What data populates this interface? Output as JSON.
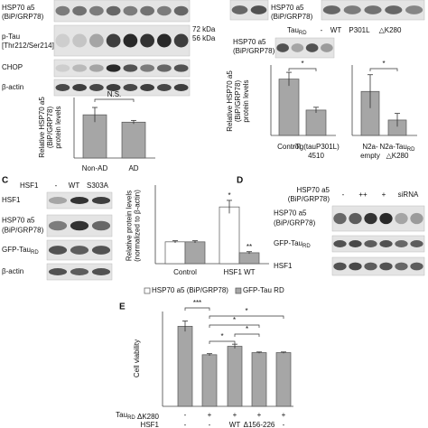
{
  "panel_labels": [
    "C",
    "D",
    "E"
  ],
  "blots": {
    "a": {
      "rows": [
        [
          "HSP70 a5",
          "(BiP/GRP78)"
        ],
        [
          "p-Tau",
          "[Thr212/Ser214]"
        ],
        [
          "CHOP"
        ],
        [
          "β-actin"
        ]
      ],
      "markers": [
        "72 kDa",
        "56 kDa"
      ]
    },
    "b": {
      "top_row": [
        "HSP70 a5",
        "(BiP/GRP78)"
      ],
      "lane_title": [
        [
          "Tau",
          {
            "sub": "RD"
          }
        ]
      ],
      "lanes": [
        "-",
        "WT",
        "P301L",
        "△K280"
      ],
      "row": [
        "HSP70 a5",
        "(BiP/GRP78)"
      ]
    },
    "c": {
      "lane_title": [
        "HSF1"
      ],
      "lanes": [
        "-",
        "WT",
        "S303A"
      ],
      "rows": [
        [
          "HSF1"
        ],
        [
          "HSP70 a5",
          "(BiP/GRP78)"
        ],
        [
          [
            "GFP-Tau",
            {
              "sub": "RD"
            }
          ]
        ],
        [
          "β-actin"
        ]
      ]
    },
    "d": {
      "lane_title": [
        "HSP70 a5",
        "(BiP/GRP78)"
      ],
      "lanes": [
        "-",
        "++",
        "+",
        "siRNA"
      ],
      "rows": [
        [
          "HSP70 a5",
          "(BiP/GRP78)"
        ],
        [
          [
            "GFP-Tau",
            {
              "sub": "RD"
            }
          ]
        ],
        [
          "HSF1"
        ]
      ]
    }
  },
  "chart_data": [
    {
      "type": "bar",
      "ylabel": [
        "Relative HSP70 a5",
        "(BiP/GRP78)",
        "protein levels"
      ],
      "categories": [
        [
          "Non-AD"
        ],
        [
          "AD"
        ]
      ],
      "values": [
        1.0,
        0.83
      ],
      "errors": [
        0.17,
        0.04
      ],
      "color": "#a6a6a6",
      "ylim": [
        0,
        1.4
      ],
      "annotations": [
        "N.S."
      ]
    },
    {
      "type": "bar",
      "ylabel": [
        "Relative HSP70 a5",
        "(BiP/GRP78)",
        "protein levels"
      ],
      "categories": [
        [
          "Control"
        ],
        [
          "rTg(tauP301L)",
          "4510"
        ]
      ],
      "values": [
        1.0,
        0.45
      ],
      "errors": [
        0.12,
        0.05
      ],
      "color": "#a6a6a6",
      "ylim": [
        0,
        1.25
      ],
      "annotations": [
        "*"
      ]
    },
    {
      "type": "bar",
      "categories": [
        [
          "N2a-",
          "empty"
        ],
        [
          [
            "N2a-Tau",
            {
              "sub": "RD"
            }
          ],
          "△K280"
        ]
      ],
      "values": [
        1.0,
        0.35
      ],
      "errors": [
        0.38,
        0.15
      ],
      "color": "#a6a6a6",
      "ylim": [
        0,
        1.6
      ],
      "annotations": [
        "*"
      ]
    },
    {
      "type": "bar",
      "ylabel": [
        "Relative protein levels",
        "(normalized to β-actin)"
      ],
      "categories": [
        [
          "Control"
        ],
        [
          "HSF1 WT"
        ]
      ],
      "series": [
        {
          "name": "HSP70 a5 (BiP/GRP78)",
          "color": "#ffffff",
          "values": [
            1.0,
            2.6
          ],
          "errors": [
            0.05,
            0.3
          ]
        },
        {
          "name": "GFP-Tau RD",
          "color": "#a6a6a6",
          "values": [
            1.0,
            0.5
          ],
          "errors": [
            0.05,
            0.05
          ]
        }
      ],
      "ylim": [
        0,
        3.6
      ],
      "annotations": [
        "*",
        "**"
      ]
    },
    {
      "type": "bar",
      "ylabel": [
        "Cell viability"
      ],
      "values": [
        0.76,
        0.49,
        0.57,
        0.51,
        0.51
      ],
      "errors": [
        0.05,
        0.01,
        0.02,
        0.006,
        0.006
      ],
      "color": "#a6a6a6",
      "ylim": [
        0,
        0.9
      ],
      "annotations": [
        "***",
        "*",
        "*",
        "*",
        "*"
      ],
      "rows": [
        {
          "label": [
            [
              "Tau",
              {
                "sub": "RD"
              },
              " ΔK280"
            ]
          ],
          "cells": [
            "-",
            "+",
            "+",
            "+",
            "+"
          ]
        },
        {
          "label": [
            "HSF1"
          ],
          "cells": [
            "-",
            "-",
            "WT",
            "Δ156-226",
            "-"
          ]
        }
      ]
    }
  ]
}
